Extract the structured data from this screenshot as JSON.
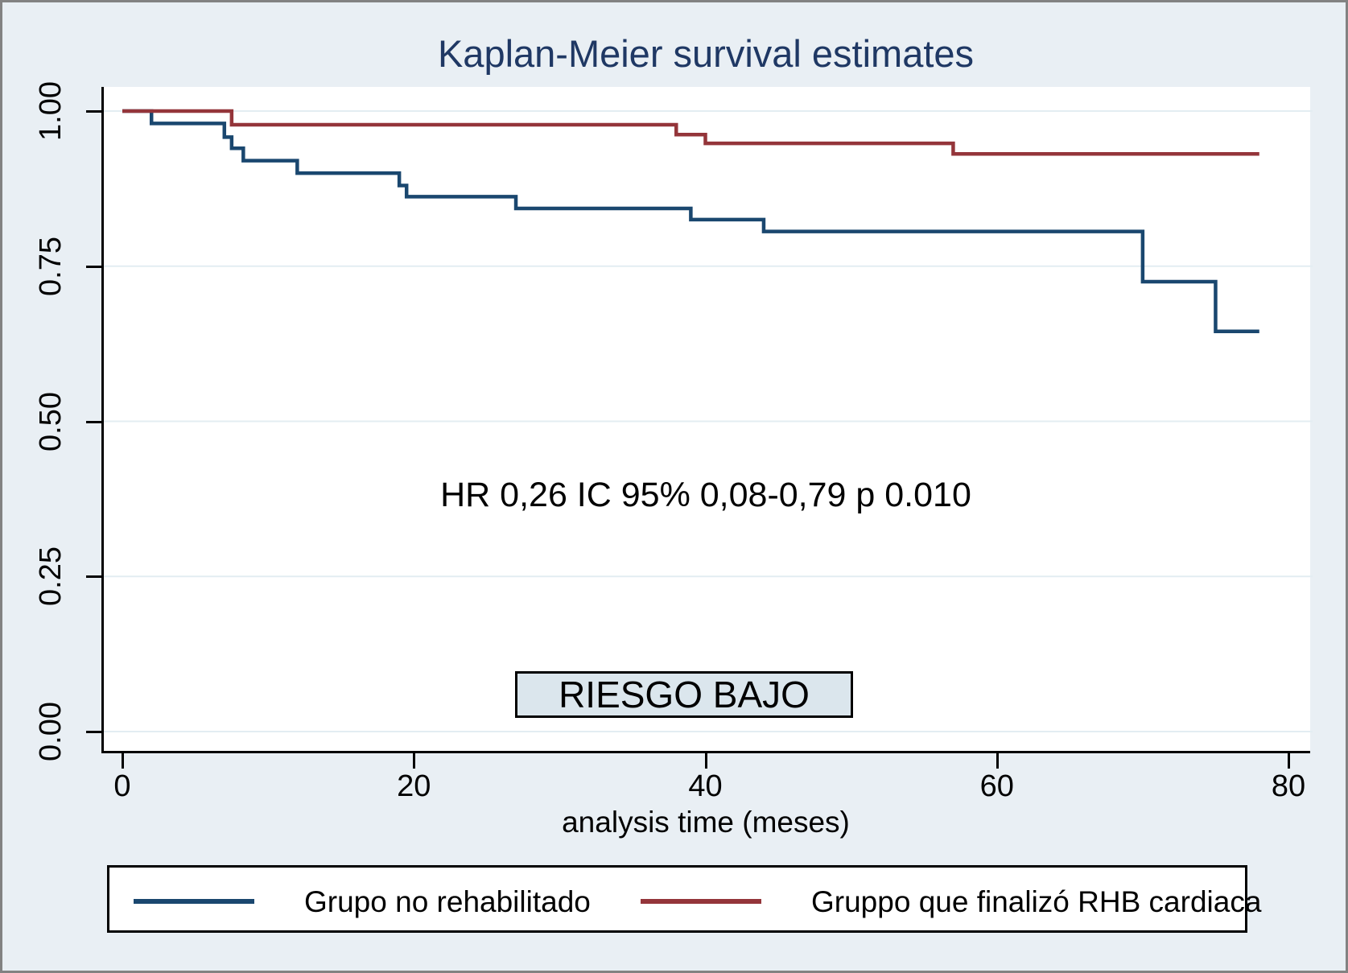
{
  "title": "Kaplan-Meier survival estimates",
  "annotation": "HR 0,26 IC 95% 0,08-0,79 p 0.010",
  "risk_label": "RIESGO BAJO",
  "x_axis": {
    "title": "analysis time (meses)"
  },
  "colors": {
    "background": "#e9eff4",
    "plot_background": "#ffffff",
    "title_text": "#1f3864",
    "gridline": "#e3edf2",
    "axis": "#000000",
    "series_blue": "#1a476f",
    "series_maroon": "#94353a",
    "risk_box_fill": "#dbe6ed"
  },
  "legend": [
    {
      "label": "Grupo no rehabilitado",
      "color": "#1a476f"
    },
    {
      "label": "Gruppo que finalizó RHB cardiaca",
      "color": "#94353a"
    }
  ],
  "chart_data": {
    "type": "line",
    "subtype": "kaplan-meier-step",
    "title": "Kaplan-Meier survival estimates",
    "xlabel": "analysis time (meses)",
    "ylabel": "",
    "xlim": [
      0,
      80
    ],
    "ylim": [
      0.0,
      1.0
    ],
    "x_ticks": [
      0,
      20,
      40,
      60,
      80
    ],
    "y_ticks": [
      0.0,
      0.25,
      0.5,
      0.75,
      1.0
    ],
    "y_tick_labels": [
      "0.00",
      "0.25",
      "0.50",
      "0.75",
      "1.00"
    ],
    "grid": "horizontal",
    "legend_position": "bottom",
    "annotation": "HR 0,26 IC 95% 0,08-0,79 p 0.010",
    "text_box": "RIESGO BAJO",
    "series": [
      {
        "name": "Grupo no rehabilitado",
        "color": "#1a476f",
        "steps": [
          [
            0,
            1.0
          ],
          [
            2,
            0.98
          ],
          [
            7,
            0.958
          ],
          [
            7.5,
            0.94
          ],
          [
            8.3,
            0.92
          ],
          [
            12,
            0.9
          ],
          [
            19,
            0.88
          ],
          [
            19.5,
            0.862
          ],
          [
            27,
            0.843
          ],
          [
            39,
            0.825
          ],
          [
            44,
            0.806
          ],
          [
            70,
            0.725
          ],
          [
            75,
            0.645
          ],
          [
            78,
            0.645
          ]
        ]
      },
      {
        "name": "Gruppo que finalizó RHB cardiaca",
        "color": "#94353a",
        "steps": [
          [
            0,
            1.0
          ],
          [
            7.5,
            0.978
          ],
          [
            38,
            0.962
          ],
          [
            40,
            0.948
          ],
          [
            57,
            0.931
          ],
          [
            78,
            0.931
          ]
        ]
      }
    ]
  }
}
